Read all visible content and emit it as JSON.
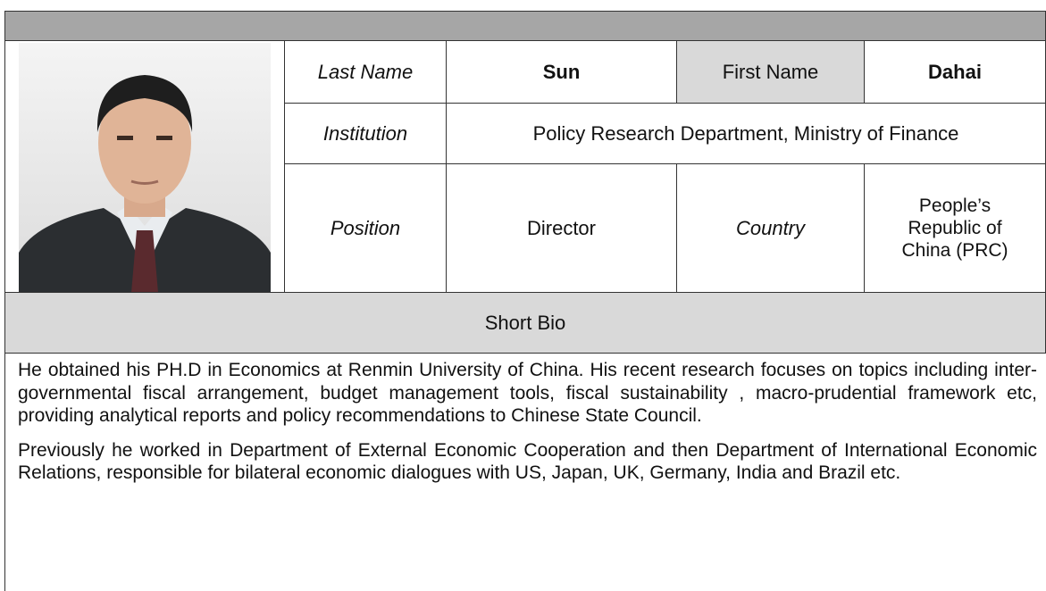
{
  "profile": {
    "last_name_label": "Last Name",
    "last_name": "Sun",
    "first_name_label": "First Name",
    "first_name": "Dahai",
    "institution_label": "Institution",
    "institution": "Policy Research Department, Ministry of Finance",
    "position_label": "Position",
    "position": "Director",
    "country_label": "Country",
    "country": "People’s Republic of China (PRC)",
    "bio_heading": "Short Bio",
    "bio": [
      "He obtained his PH.D in Economics at Renmin University of China. His recent research focuses on topics including inter-governmental fiscal arrangement, budget management tools, fiscal sustainability , macro-prudential framework etc, providing analytical reports and policy recommendations to Chinese State Council.",
      "Previously he worked in Department of External Economic Cooperation and then Department of International Economic Relations, responsible for bilateral economic dialogues with US, Japan, UK, Germany, India and Brazil etc."
    ]
  }
}
